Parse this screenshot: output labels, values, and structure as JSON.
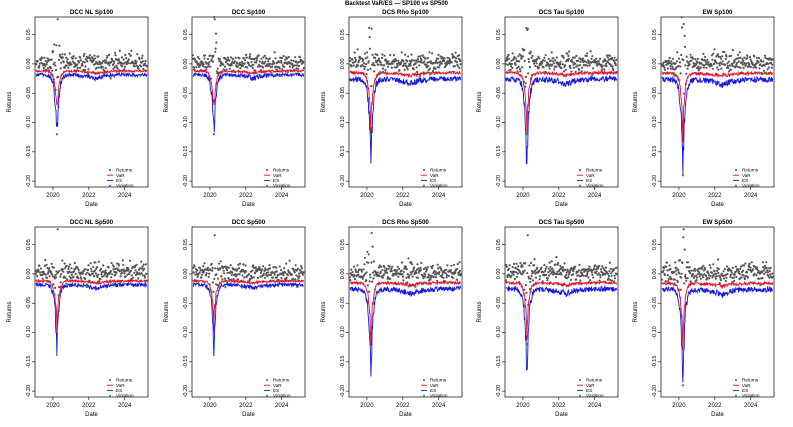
{
  "suptitle": "Backtest VaR/ES — SP100 vs SP500",
  "colors": {
    "returns": "#555555",
    "var": "#e0102a",
    "es": "#1515e0",
    "violation": "#2aa52a",
    "axis": "#000000"
  },
  "legend": {
    "placement": "bottom-right",
    "entries": [
      "Returns",
      "VaR",
      "ES",
      "Violation"
    ]
  },
  "chart_data": [
    {
      "type": "scatter",
      "title": "DCC NL Sp100",
      "xlabel": "Date",
      "ylabel": "Returns",
      "xlim": [
        2019.0,
        2025.3
      ],
      "ylim": [
        -0.21,
        0.08
      ],
      "xticks": [
        "2020",
        "2022",
        "2024"
      ],
      "yticks": [
        "0.05",
        "0.00",
        "-0.05",
        "-0.10",
        "-0.15",
        "-0.20"
      ],
      "series": [
        {
          "name": "Returns",
          "min_return": -0.12,
          "max_return": 0.076
        },
        {
          "name": "VaR",
          "typical": -0.012
        },
        {
          "name": "ES",
          "typical": -0.018,
          "min": -0.1
        },
        {
          "name": "Violation"
        }
      ]
    },
    {
      "type": "scatter",
      "title": "DCC Sp100",
      "xlabel": "Date",
      "ylabel": "Returns",
      "xlim": [
        2019.0,
        2025.3
      ],
      "ylim": [
        -0.21,
        0.08
      ],
      "xticks": [
        "2020",
        "2022",
        "2024"
      ],
      "yticks": [
        "0.05",
        "0.00",
        "-0.05",
        "-0.10",
        "-0.15",
        "-0.20"
      ],
      "series": [
        {
          "name": "Returns",
          "min_return": -0.12,
          "max_return": 0.076
        },
        {
          "name": "VaR",
          "typical": -0.012
        },
        {
          "name": "ES",
          "typical": -0.018,
          "min": -0.1
        },
        {
          "name": "Violation"
        }
      ]
    },
    {
      "type": "scatter",
      "title": "DCS Rho Sp100",
      "xlabel": "Date",
      "ylabel": "Returns",
      "xlim": [
        2019.0,
        2025.3
      ],
      "ylim": [
        -0.21,
        0.08
      ],
      "xticks": [
        "2020",
        "2022",
        "2024"
      ],
      "yticks": [
        "0.05",
        "0.00",
        "-0.05",
        "-0.10",
        "-0.15",
        "-0.20"
      ],
      "series": [
        {
          "name": "Returns",
          "min_return": -0.12,
          "max_return": 0.06
        },
        {
          "name": "VaR",
          "typical": -0.015
        },
        {
          "name": "ES",
          "typical": -0.025,
          "min": -0.17
        },
        {
          "name": "Violation"
        }
      ]
    },
    {
      "type": "scatter",
      "title": "DCS Tau Sp100",
      "xlabel": "Date",
      "ylabel": "Returns",
      "xlim": [
        2019.0,
        2025.3
      ],
      "ylim": [
        -0.21,
        0.08
      ],
      "xticks": [
        "2020",
        "2022",
        "2024"
      ],
      "yticks": [
        "0.05",
        "0.00",
        "-0.05",
        "-0.10",
        "-0.15",
        "-0.20"
      ],
      "series": [
        {
          "name": "Returns",
          "min_return": -0.12,
          "max_return": 0.06
        },
        {
          "name": "VaR",
          "typical": -0.015
        },
        {
          "name": "ES",
          "typical": -0.025,
          "min": -0.17
        },
        {
          "name": "Violation"
        }
      ]
    },
    {
      "type": "scatter",
      "title": "EW Sp100",
      "xlabel": "Date",
      "ylabel": "Returns",
      "xlim": [
        2019.0,
        2025.3
      ],
      "ylim": [
        -0.21,
        0.08
      ],
      "xticks": [
        "2020",
        "2022",
        "2024"
      ],
      "yticks": [
        "0.05",
        "0.00",
        "-0.05",
        "-0.10",
        "-0.15",
        "-0.20"
      ],
      "series": [
        {
          "name": "Returns",
          "min_return": -0.19,
          "max_return": 0.068
        },
        {
          "name": "VaR",
          "typical": -0.016
        },
        {
          "name": "ES",
          "typical": -0.026,
          "min": -0.19
        },
        {
          "name": "Violation"
        }
      ]
    },
    {
      "type": "scatter",
      "title": "DCC NL Sp500",
      "xlabel": "Date",
      "ylabel": "Returns",
      "xlim": [
        2019.0,
        2025.3
      ],
      "ylim": [
        -0.21,
        0.08
      ],
      "xticks": [
        "2020",
        "2022",
        "2024"
      ],
      "yticks": [
        "0.05",
        "0.00",
        "-0.05",
        "-0.10",
        "-0.15",
        "-0.20"
      ],
      "series": [
        {
          "name": "Returns",
          "min_return": -0.12,
          "max_return": 0.076
        },
        {
          "name": "VaR",
          "typical": -0.012
        },
        {
          "name": "ES",
          "typical": -0.018,
          "min": -0.14
        },
        {
          "name": "Violation"
        }
      ]
    },
    {
      "type": "scatter",
      "title": "DCC Sp500",
      "xlabel": "Date",
      "ylabel": "Returns",
      "xlim": [
        2019.0,
        2025.3
      ],
      "ylim": [
        -0.21,
        0.08
      ],
      "xticks": [
        "2020",
        "2022",
        "2024"
      ],
      "yticks": [
        "0.05",
        "0.00",
        "-0.05",
        "-0.10",
        "-0.15",
        "-0.20"
      ],
      "series": [
        {
          "name": "Returns",
          "min_return": -0.12,
          "max_return": 0.066
        },
        {
          "name": "VaR",
          "typical": -0.012
        },
        {
          "name": "ES",
          "typical": -0.018,
          "min": -0.14
        },
        {
          "name": "Violation"
        }
      ]
    },
    {
      "type": "scatter",
      "title": "DCS Rho Sp500",
      "xlabel": "Date",
      "ylabel": "Returns",
      "xlim": [
        2019.0,
        2025.3
      ],
      "ylim": [
        -0.21,
        0.08
      ],
      "xticks": [
        "2020",
        "2022",
        "2024"
      ],
      "yticks": [
        "0.05",
        "0.00",
        "-0.05",
        "-0.10",
        "-0.15",
        "-0.20"
      ],
      "series": [
        {
          "name": "Returns",
          "min_return": -0.12,
          "max_return": 0.07
        },
        {
          "name": "VaR",
          "typical": -0.015
        },
        {
          "name": "ES",
          "typical": -0.025,
          "min": -0.175
        },
        {
          "name": "Violation"
        }
      ]
    },
    {
      "type": "scatter",
      "title": "DCS Tau Sp500",
      "xlabel": "Date",
      "ylabel": "Returns",
      "xlim": [
        2019.0,
        2025.3
      ],
      "ylim": [
        -0.21,
        0.08
      ],
      "xticks": [
        "2020",
        "2022",
        "2024"
      ],
      "yticks": [
        "0.05",
        "0.00",
        "-0.05",
        "-0.10",
        "-0.15",
        "-0.20"
      ],
      "series": [
        {
          "name": "Returns",
          "min_return": -0.12,
          "max_return": 0.066
        },
        {
          "name": "VaR",
          "typical": -0.015
        },
        {
          "name": "ES",
          "typical": -0.025,
          "min": -0.16
        },
        {
          "name": "Violation"
        }
      ]
    },
    {
      "type": "scatter",
      "title": "EW Sp500",
      "xlabel": "Date",
      "ylabel": "Returns",
      "xlim": [
        2019.0,
        2025.3
      ],
      "ylim": [
        -0.21,
        0.08
      ],
      "xticks": [
        "2020",
        "2022",
        "2024"
      ],
      "yticks": [
        "0.05",
        "0.00",
        "-0.05",
        "-0.10",
        "-0.15",
        "-0.20"
      ],
      "series": [
        {
          "name": "Returns",
          "min_return": -0.19,
          "max_return": 0.076
        },
        {
          "name": "VaR",
          "typical": -0.016
        },
        {
          "name": "ES",
          "typical": -0.026,
          "min": -0.185
        },
        {
          "name": "Violation"
        }
      ]
    }
  ]
}
